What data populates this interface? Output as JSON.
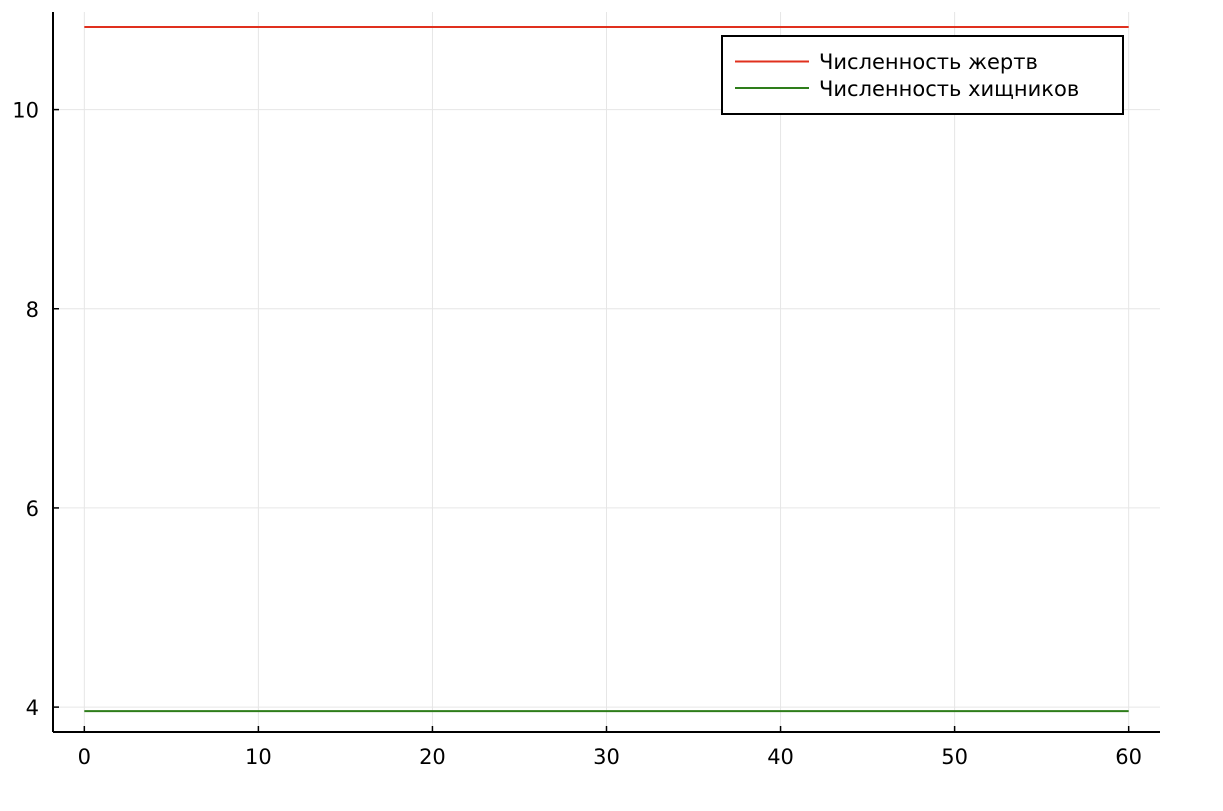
{
  "chart_data": {
    "type": "line",
    "title": "",
    "xlabel": "",
    "ylabel": "",
    "xlim": [
      -1.8,
      61.8
    ],
    "ylim": [
      3.75,
      10.98
    ],
    "grid": true,
    "legend_position": "top-right",
    "xticks": [
      0,
      10,
      20,
      30,
      40,
      50,
      60
    ],
    "xtick_labels": [
      "0",
      "10",
      "20",
      "30",
      "40",
      "50",
      "60"
    ],
    "yticks": [
      4,
      6,
      8,
      10
    ],
    "ytick_labels": [
      "4",
      "6",
      "8",
      "10"
    ],
    "series": [
      {
        "name": "Численность жертв",
        "color": "#e0301e",
        "x": [
          0,
          60
        ],
        "y": [
          10.83,
          10.83
        ]
      },
      {
        "name": "Численность хищников",
        "color": "#2e7d1a",
        "x": [
          0,
          60
        ],
        "y": [
          3.96,
          3.96
        ]
      }
    ]
  }
}
